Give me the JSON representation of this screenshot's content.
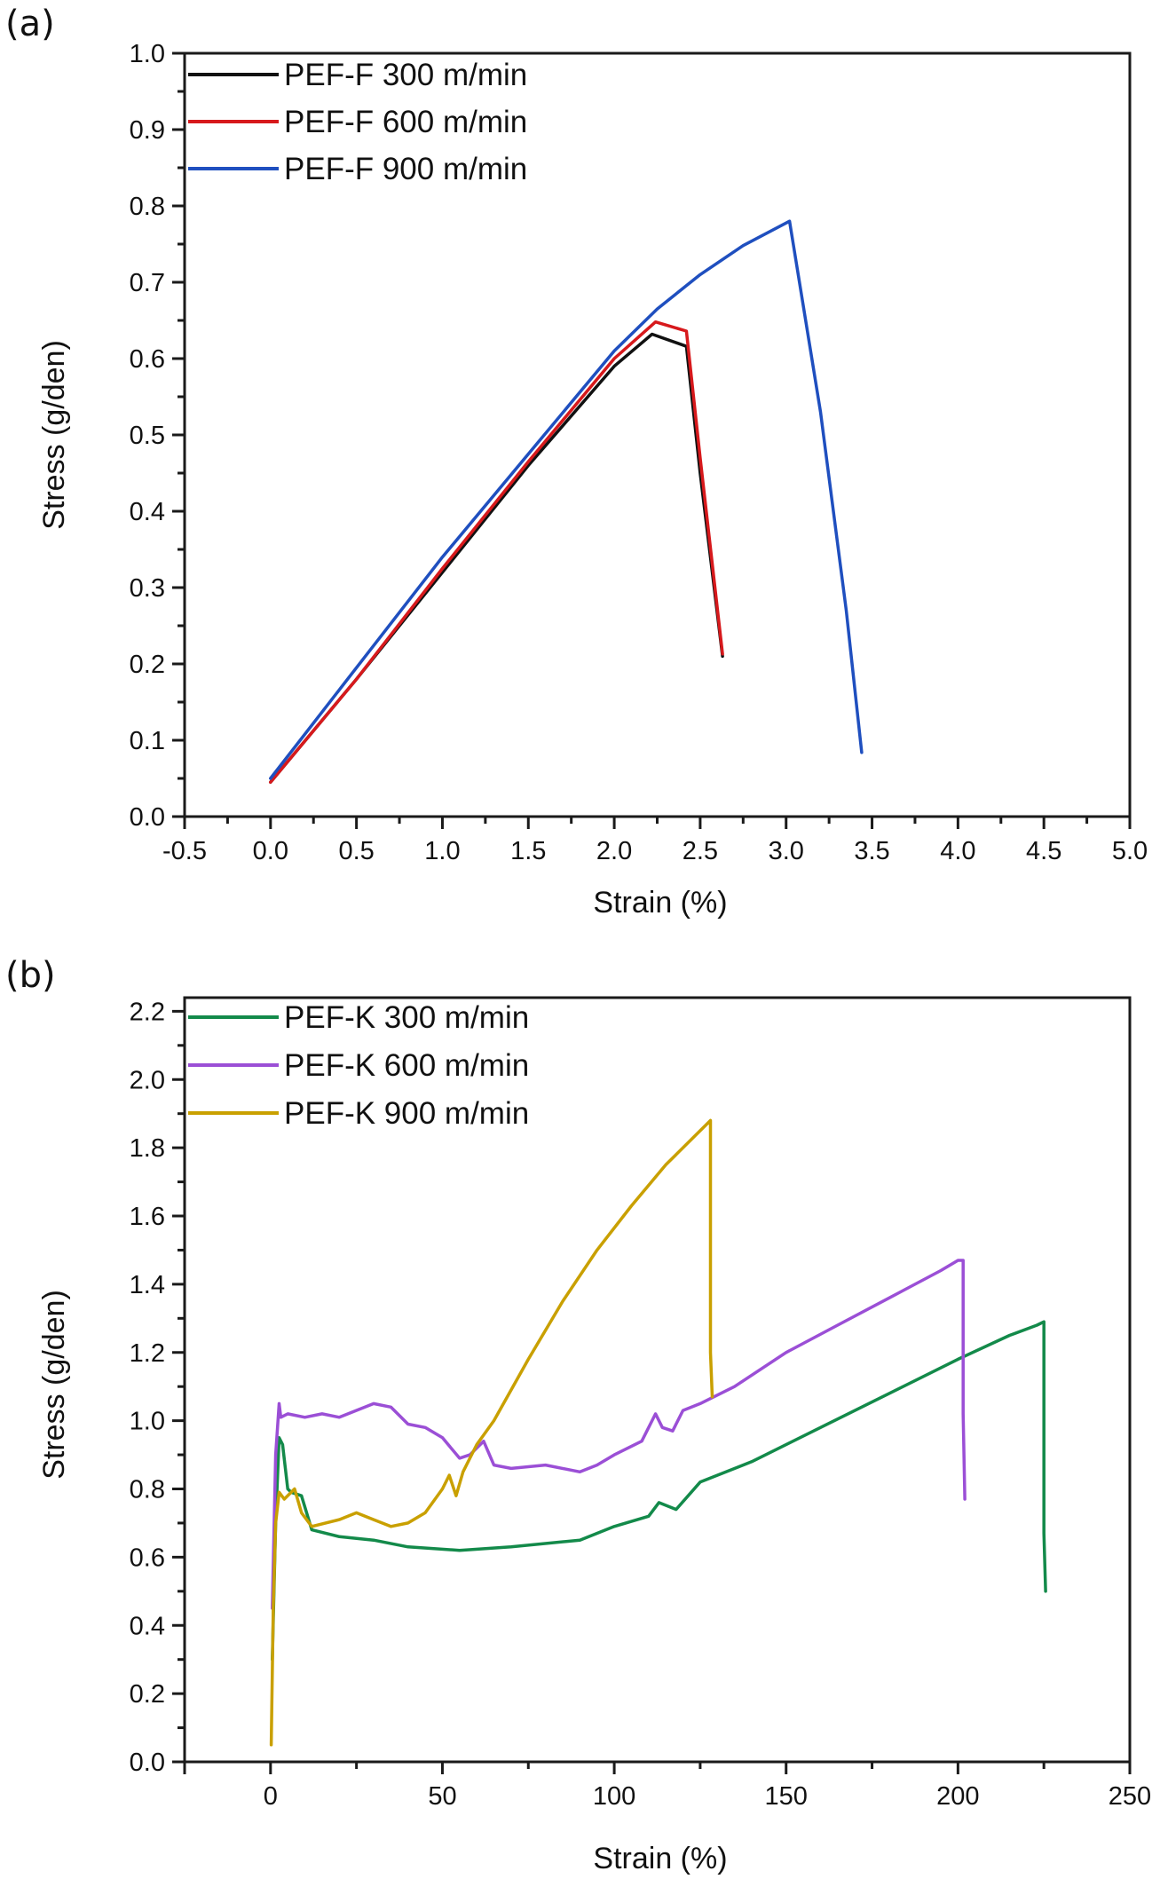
{
  "chart_data": [
    {
      "panel_label": "(a)",
      "type": "line",
      "title": "",
      "xlabel": "Strain (%)",
      "ylabel": "Stress (g/den)",
      "xlim": [
        -0.5,
        5.0
      ],
      "ylim": [
        0.0,
        1.0
      ],
      "xticks": [
        -0.5,
        0.0,
        0.5,
        1.0,
        1.5,
        2.0,
        2.5,
        3.0,
        3.5,
        4.0,
        4.5,
        5.0
      ],
      "xtick_labels": [
        "-0.5",
        "0.0",
        "0.5",
        "1.0",
        "1.5",
        "2.0",
        "2.5",
        "3.0",
        "3.5",
        "4.0",
        "4.5",
        "5.0"
      ],
      "yticks": [
        0.0,
        0.1,
        0.2,
        0.3,
        0.4,
        0.5,
        0.6,
        0.7,
        0.8,
        0.9,
        1.0
      ],
      "ytick_labels": [
        "0.0",
        "0.1",
        "0.2",
        "0.3",
        "0.4",
        "0.5",
        "0.6",
        "0.7",
        "0.8",
        "0.9",
        "1.0"
      ],
      "grid": false,
      "legend_position": "top-left",
      "series": [
        {
          "name": "PEF-F 300 m/min",
          "color": "#111111",
          "x": [
            0.0,
            0.5,
            1.0,
            1.5,
            2.0,
            2.22,
            2.42,
            2.5,
            2.63
          ],
          "y": [
            0.045,
            0.18,
            0.32,
            0.46,
            0.59,
            0.632,
            0.616,
            0.45,
            0.21
          ]
        },
        {
          "name": "PEF-F 600 m/min",
          "color": "#d7191c",
          "x": [
            0.0,
            0.5,
            1.0,
            1.5,
            2.0,
            2.24,
            2.42,
            2.5,
            2.63
          ],
          "y": [
            0.045,
            0.18,
            0.325,
            0.465,
            0.6,
            0.648,
            0.636,
            0.47,
            0.213
          ]
        },
        {
          "name": "PEF-F 900 m/min",
          "color": "#1f4fbf",
          "x": [
            0.0,
            0.5,
            1.0,
            1.5,
            2.0,
            2.25,
            2.5,
            2.75,
            3.02,
            3.2,
            3.35,
            3.44
          ],
          "y": [
            0.05,
            0.195,
            0.34,
            0.475,
            0.61,
            0.665,
            0.71,
            0.748,
            0.78,
            0.53,
            0.27,
            0.084
          ]
        }
      ]
    },
    {
      "panel_label": "(b)",
      "type": "line",
      "title": "",
      "xlabel": "Strain (%)",
      "ylabel": "Stress (g/den)",
      "xlim": [
        -25,
        250
      ],
      "ylim": [
        0.0,
        2.24
      ],
      "xticks": [
        0,
        50,
        100,
        150,
        200,
        250
      ],
      "xtick_labels": [
        "0",
        "50",
        "100",
        "150",
        "200",
        "250"
      ],
      "yticks": [
        0.0,
        0.2,
        0.4,
        0.6,
        0.8,
        1.0,
        1.2,
        1.4,
        1.6,
        1.8,
        2.0,
        2.2
      ],
      "ytick_labels": [
        "0.0",
        "0.2",
        "0.4",
        "0.6",
        "0.8",
        "1.0",
        "1.2",
        "1.4",
        "1.6",
        "1.8",
        "2.0",
        "2.2"
      ],
      "grid": false,
      "legend_position": "top-left",
      "series": [
        {
          "name": "PEF-K 300 m/min",
          "color": "#138a4a",
          "x": [
            0.5,
            1.5,
            2.5,
            3.5,
            5,
            6,
            9,
            12,
            20,
            30,
            40,
            55,
            70,
            90,
            100,
            110,
            113,
            118,
            125,
            140,
            160,
            180,
            200,
            215,
            223,
            225,
            225,
            225.5
          ],
          "y": [
            0.3,
            0.7,
            0.95,
            0.93,
            0.8,
            0.79,
            0.78,
            0.68,
            0.66,
            0.65,
            0.63,
            0.62,
            0.63,
            0.65,
            0.69,
            0.72,
            0.76,
            0.74,
            0.82,
            0.88,
            0.98,
            1.08,
            1.18,
            1.25,
            1.28,
            1.29,
            0.67,
            0.5
          ]
        },
        {
          "name": "PEF-K 600 m/min",
          "color": "#9b4fd6",
          "x": [
            0.5,
            1.5,
            2.5,
            3,
            5,
            10,
            15,
            20,
            30,
            35,
            40,
            45,
            50,
            55,
            58,
            62,
            65,
            70,
            80,
            90,
            95,
            100,
            108,
            112,
            114,
            117,
            120,
            125,
            135,
            150,
            165,
            180,
            195,
            200,
            201.5,
            201.5,
            202
          ],
          "y": [
            0.45,
            0.9,
            1.05,
            1.01,
            1.02,
            1.01,
            1.02,
            1.01,
            1.05,
            1.04,
            0.99,
            0.98,
            0.95,
            0.89,
            0.9,
            0.94,
            0.87,
            0.86,
            0.87,
            0.85,
            0.87,
            0.9,
            0.94,
            1.02,
            0.98,
            0.97,
            1.03,
            1.05,
            1.1,
            1.2,
            1.28,
            1.36,
            1.44,
            1.47,
            1.47,
            1.02,
            0.77
          ]
        },
        {
          "name": "PEF-K 900 m/min",
          "color": "#c9a000",
          "x": [
            0.2,
            0.8,
            1.5,
            2.5,
            4,
            7,
            9,
            12,
            20,
            25,
            30,
            35,
            40,
            45,
            50,
            52,
            54,
            56,
            60,
            65,
            75,
            85,
            95,
            105,
            115,
            125,
            128,
            128,
            128.5
          ],
          "y": [
            0.05,
            0.45,
            0.7,
            0.79,
            0.77,
            0.8,
            0.73,
            0.69,
            0.71,
            0.73,
            0.71,
            0.69,
            0.7,
            0.73,
            0.8,
            0.84,
            0.78,
            0.85,
            0.93,
            1.0,
            1.18,
            1.35,
            1.5,
            1.63,
            1.75,
            1.85,
            1.88,
            1.2,
            1.07
          ]
        }
      ]
    }
  ]
}
